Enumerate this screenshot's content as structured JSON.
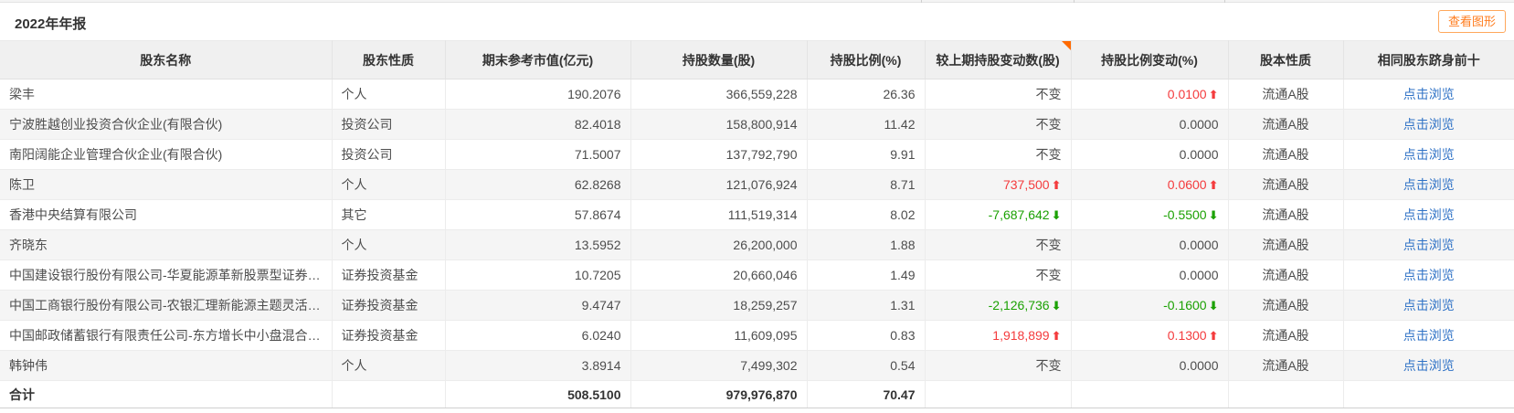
{
  "header": {
    "title": "2022年年报",
    "view_chart_button": "查看图形"
  },
  "colors": {
    "accent_orange": "#ff7c1e",
    "accent_orange_border": "#ffa85c",
    "corner_orange": "#ff6a00",
    "up_red": "#f43b3d",
    "down_green": "#1ba103",
    "link_blue": "#2f72c6"
  },
  "icons": {
    "up_arrow": "⬆",
    "down_arrow": "⬇"
  },
  "table": {
    "columns": [
      {
        "key": "name",
        "label": "股东名称",
        "align": "left"
      },
      {
        "key": "nature",
        "label": "股东性质",
        "align": "left"
      },
      {
        "key": "market_value",
        "label": "期末参考市值(亿元)",
        "align": "right"
      },
      {
        "key": "shares",
        "label": "持股数量(股)",
        "align": "right"
      },
      {
        "key": "ratio",
        "label": "持股比例(%)",
        "align": "right"
      },
      {
        "key": "share_change",
        "label": "较上期持股变动数(股)",
        "align": "right",
        "sort_corner": true
      },
      {
        "key": "ratio_change",
        "label": "持股比例变动(%)",
        "align": "right"
      },
      {
        "key": "share_type",
        "label": "股本性质",
        "align": "center"
      },
      {
        "key": "browse",
        "label": "相同股东跻身前十",
        "align": "center"
      }
    ],
    "rows": [
      {
        "name": "梁丰",
        "nature": "个人",
        "market_value": "190.2076",
        "shares": "366,559,228",
        "ratio": "26.36",
        "share_change": {
          "text": "不变",
          "trend": "none"
        },
        "ratio_change": {
          "text": "0.0100",
          "trend": "up"
        },
        "share_type": "流通A股",
        "browse": "点击浏览"
      },
      {
        "name": "宁波胜越创业投资合伙企业(有限合伙)",
        "nature": "投资公司",
        "market_value": "82.4018",
        "shares": "158,800,914",
        "ratio": "11.42",
        "share_change": {
          "text": "不变",
          "trend": "none"
        },
        "ratio_change": {
          "text": "0.0000",
          "trend": "none"
        },
        "share_type": "流通A股",
        "browse": "点击浏览"
      },
      {
        "name": "南阳阔能企业管理合伙企业(有限合伙)",
        "nature": "投资公司",
        "market_value": "71.5007",
        "shares": "137,792,790",
        "ratio": "9.91",
        "share_change": {
          "text": "不变",
          "trend": "none"
        },
        "ratio_change": {
          "text": "0.0000",
          "trend": "none"
        },
        "share_type": "流通A股",
        "browse": "点击浏览"
      },
      {
        "name": "陈卫",
        "nature": "个人",
        "market_value": "62.8268",
        "shares": "121,076,924",
        "ratio": "8.71",
        "share_change": {
          "text": "737,500",
          "trend": "up"
        },
        "ratio_change": {
          "text": "0.0600",
          "trend": "up"
        },
        "share_type": "流通A股",
        "browse": "点击浏览"
      },
      {
        "name": "香港中央结算有限公司",
        "nature": "其它",
        "market_value": "57.8674",
        "shares": "111,519,314",
        "ratio": "8.02",
        "share_change": {
          "text": "-7,687,642",
          "trend": "down"
        },
        "ratio_change": {
          "text": "-0.5500",
          "trend": "down"
        },
        "share_type": "流通A股",
        "browse": "点击浏览"
      },
      {
        "name": "齐晓东",
        "nature": "个人",
        "market_value": "13.5952",
        "shares": "26,200,000",
        "ratio": "1.88",
        "share_change": {
          "text": "不变",
          "trend": "none"
        },
        "ratio_change": {
          "text": "0.0000",
          "trend": "none"
        },
        "share_type": "流通A股",
        "browse": "点击浏览"
      },
      {
        "name": "中国建设银行股份有限公司-华夏能源革新股票型证券投...",
        "nature": "证券投资基金",
        "market_value": "10.7205",
        "shares": "20,660,046",
        "ratio": "1.49",
        "share_change": {
          "text": "不变",
          "trend": "none"
        },
        "ratio_change": {
          "text": "0.0000",
          "trend": "none"
        },
        "share_type": "流通A股",
        "browse": "点击浏览"
      },
      {
        "name": "中国工商银行股份有限公司-农银汇理新能源主题灵活配...",
        "nature": "证券投资基金",
        "market_value": "9.4747",
        "shares": "18,259,257",
        "ratio": "1.31",
        "share_change": {
          "text": "-2,126,736",
          "trend": "down"
        },
        "ratio_change": {
          "text": "-0.1600",
          "trend": "down"
        },
        "share_type": "流通A股",
        "browse": "点击浏览"
      },
      {
        "name": "中国邮政储蓄银行有限责任公司-东方增长中小盘混合型...",
        "nature": "证券投资基金",
        "market_value": "6.0240",
        "shares": "11,609,095",
        "ratio": "0.83",
        "share_change": {
          "text": "1,918,899",
          "trend": "up"
        },
        "ratio_change": {
          "text": "0.1300",
          "trend": "up"
        },
        "share_type": "流通A股",
        "browse": "点击浏览"
      },
      {
        "name": "韩钟伟",
        "nature": "个人",
        "market_value": "3.8914",
        "shares": "7,499,302",
        "ratio": "0.54",
        "share_change": {
          "text": "不变",
          "trend": "none"
        },
        "ratio_change": {
          "text": "0.0000",
          "trend": "none"
        },
        "share_type": "流通A股",
        "browse": "点击浏览"
      }
    ],
    "total": {
      "name": "合计",
      "market_value": "508.5100",
      "shares": "979,976,870",
      "ratio": "70.47"
    }
  }
}
